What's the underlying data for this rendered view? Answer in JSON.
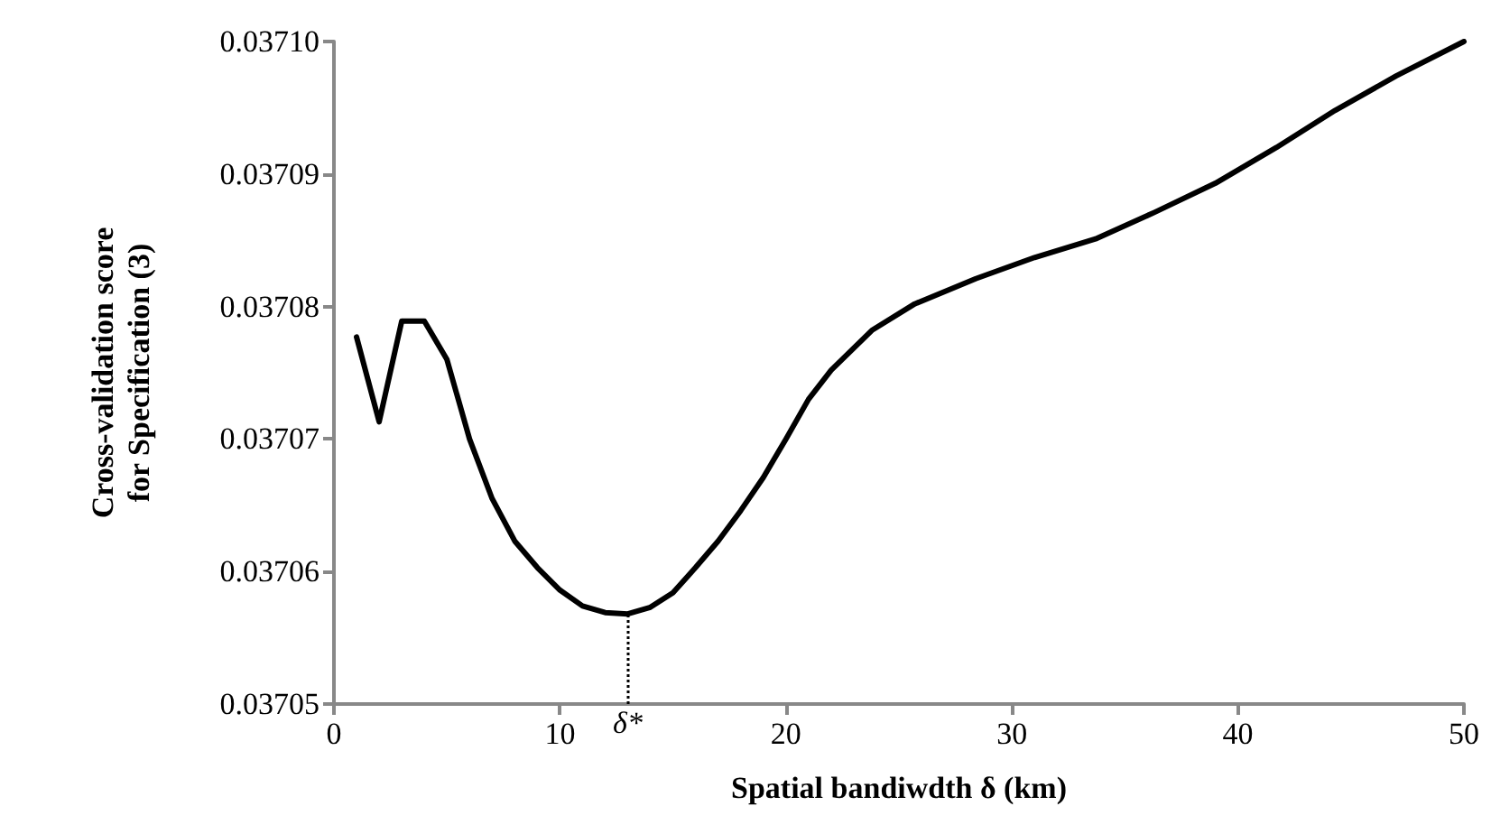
{
  "chart_data": {
    "type": "line",
    "xlabel": "Spatial bandiwdth δ (km)",
    "ylabel": "Cross-validation score for Specification (3)",
    "series": [
      {
        "color": "#000000",
        "x": [
          1,
          2,
          3,
          4,
          5,
          6,
          7,
          8,
          9,
          10,
          11,
          12,
          13,
          14,
          15,
          16,
          17,
          18,
          19,
          20,
          21,
          22,
          23.8,
          25.7,
          28.4,
          31,
          33.7,
          36.3,
          39,
          41.7,
          44.3,
          47,
          50
        ],
        "values": [
          0.0370777,
          0.0370713,
          0.0370789,
          0.0370789,
          0.037076,
          0.03707,
          0.0370655,
          0.0370623,
          0.0370603,
          0.0370586,
          0.0370574,
          0.0370569,
          0.0370568,
          0.0370573,
          0.0370584,
          0.0370603,
          0.0370623,
          0.0370646,
          0.0370671,
          0.03707,
          0.037073,
          0.0370752,
          0.0370782,
          0.0370802,
          0.0370821,
          0.0370837,
          0.0370851,
          0.0370871,
          0.0370893,
          0.037092,
          0.0370948,
          0.0370974,
          0.0371
        ]
      }
    ],
    "xlim": [
      0,
      50
    ],
    "xticks": [
      0,
      10,
      20,
      30,
      40,
      50
    ],
    "ylim": [
      0.03705,
      0.0371
    ],
    "yticks": [
      0.03705,
      0.03706,
      0.03707,
      0.03708,
      0.03709,
      {
        "value": 0.0371,
        "label": "0.03710"
      }
    ],
    "ref_lines": [
      {
        "axis": "x",
        "value": 13,
        "label": "δ*",
        "color": "#000000",
        "line_style": "dotted"
      }
    ],
    "marker": "none",
    "line_style": "solid"
  }
}
